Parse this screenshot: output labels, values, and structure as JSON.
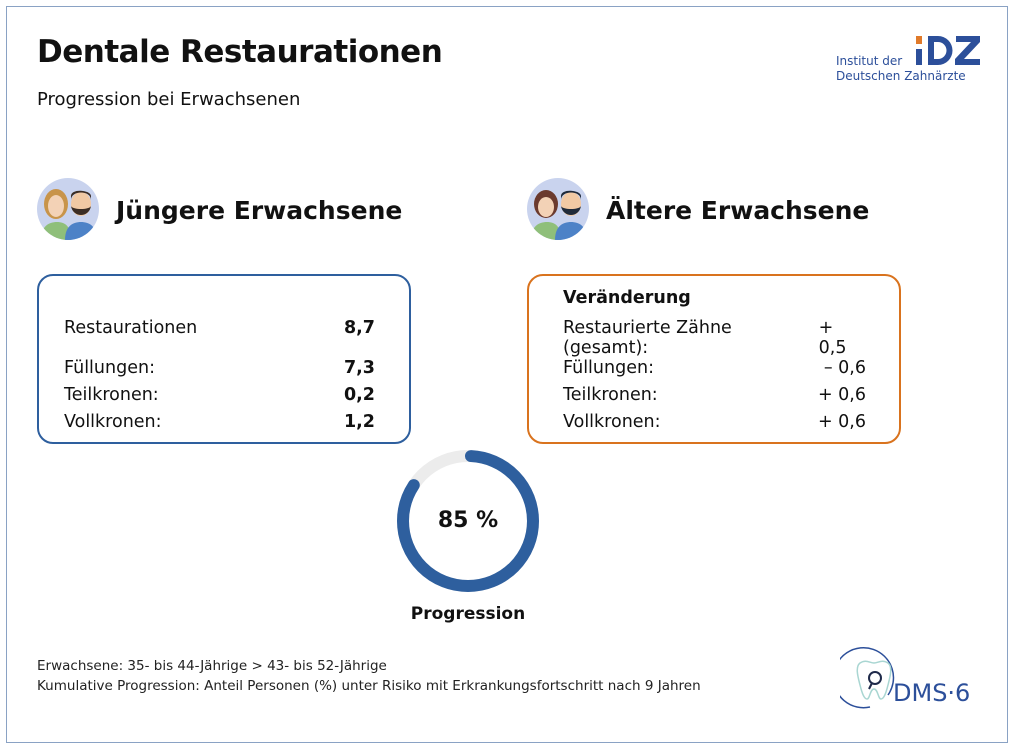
{
  "header": {
    "title": "Dentale Restaurationen",
    "subtitle": "Progression bei Erwachsenen"
  },
  "logo_idz": {
    "line1": "Institut der",
    "line2": "Deutschen Zahnärzte",
    "mark": "IDZ"
  },
  "young": {
    "title": "Jüngere Erwachsene",
    "rows": [
      {
        "label": "Restaurationen",
        "value": "8,7"
      },
      {
        "label": "Füllungen:",
        "value": "7,3"
      },
      {
        "label": "Teilkronen:",
        "value": "0,2"
      },
      {
        "label": "Vollkronen:",
        "value": "1,2"
      }
    ]
  },
  "old": {
    "title": "Ältere Erwachsene",
    "heading": "Veränderung",
    "rows": [
      {
        "label": "Restaurierte Zähne (gesamt):",
        "value": "+ 0,5"
      },
      {
        "label": "Füllungen:",
        "value": "– 0,6"
      },
      {
        "label": "Teilkronen:",
        "value": "+ 0,6"
      },
      {
        "label": "Vollkronen:",
        "value": "+ 0,6"
      }
    ]
  },
  "progress": {
    "value": 85,
    "display": "85 %",
    "label": "Progression"
  },
  "notes": [
    "Erwachsene: 35- bis 44-Jährige > 43- bis 52-Jährige",
    "Kumulative Progression: Anteil Personen (%) unter Risiko mit Erkrankungsfortschritt nach 9 Jahren"
  ],
  "logo_dms": {
    "text": "DMS·6"
  },
  "colors": {
    "blue": "#2e5f9e",
    "orange": "#d9731e",
    "ring_bg": "#ececec",
    "logo_blue": "#2c4f9a"
  }
}
